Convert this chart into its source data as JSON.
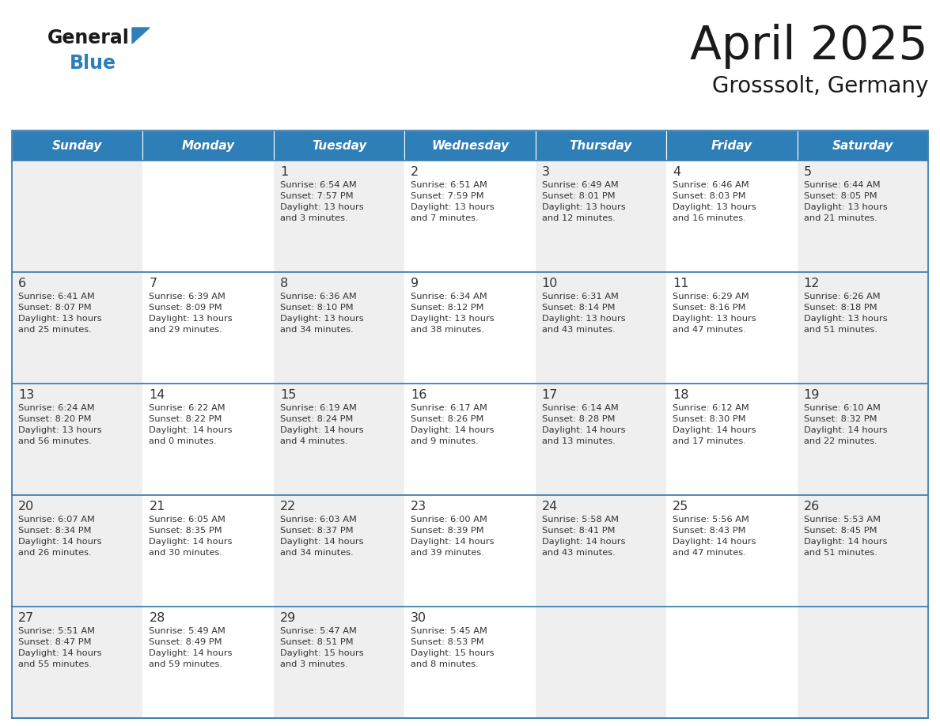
{
  "title": "April 2025",
  "subtitle": "Grosssolt, Germany",
  "header_color": "#2E7EB8",
  "header_text_color": "#FFFFFF",
  "cell_bg_even": "#EFEFEF",
  "cell_bg_odd": "#FFFFFF",
  "text_color": "#333333",
  "line_color": "#4080B0",
  "days_of_week": [
    "Sunday",
    "Monday",
    "Tuesday",
    "Wednesday",
    "Thursday",
    "Friday",
    "Saturday"
  ],
  "weeks": [
    [
      {
        "day": "",
        "info": ""
      },
      {
        "day": "",
        "info": ""
      },
      {
        "day": "1",
        "info": "Sunrise: 6:54 AM\nSunset: 7:57 PM\nDaylight: 13 hours\nand 3 minutes."
      },
      {
        "day": "2",
        "info": "Sunrise: 6:51 AM\nSunset: 7:59 PM\nDaylight: 13 hours\nand 7 minutes."
      },
      {
        "day": "3",
        "info": "Sunrise: 6:49 AM\nSunset: 8:01 PM\nDaylight: 13 hours\nand 12 minutes."
      },
      {
        "day": "4",
        "info": "Sunrise: 6:46 AM\nSunset: 8:03 PM\nDaylight: 13 hours\nand 16 minutes."
      },
      {
        "day": "5",
        "info": "Sunrise: 6:44 AM\nSunset: 8:05 PM\nDaylight: 13 hours\nand 21 minutes."
      }
    ],
    [
      {
        "day": "6",
        "info": "Sunrise: 6:41 AM\nSunset: 8:07 PM\nDaylight: 13 hours\nand 25 minutes."
      },
      {
        "day": "7",
        "info": "Sunrise: 6:39 AM\nSunset: 8:09 PM\nDaylight: 13 hours\nand 29 minutes."
      },
      {
        "day": "8",
        "info": "Sunrise: 6:36 AM\nSunset: 8:10 PM\nDaylight: 13 hours\nand 34 minutes."
      },
      {
        "day": "9",
        "info": "Sunrise: 6:34 AM\nSunset: 8:12 PM\nDaylight: 13 hours\nand 38 minutes."
      },
      {
        "day": "10",
        "info": "Sunrise: 6:31 AM\nSunset: 8:14 PM\nDaylight: 13 hours\nand 43 minutes."
      },
      {
        "day": "11",
        "info": "Sunrise: 6:29 AM\nSunset: 8:16 PM\nDaylight: 13 hours\nand 47 minutes."
      },
      {
        "day": "12",
        "info": "Sunrise: 6:26 AM\nSunset: 8:18 PM\nDaylight: 13 hours\nand 51 minutes."
      }
    ],
    [
      {
        "day": "13",
        "info": "Sunrise: 6:24 AM\nSunset: 8:20 PM\nDaylight: 13 hours\nand 56 minutes."
      },
      {
        "day": "14",
        "info": "Sunrise: 6:22 AM\nSunset: 8:22 PM\nDaylight: 14 hours\nand 0 minutes."
      },
      {
        "day": "15",
        "info": "Sunrise: 6:19 AM\nSunset: 8:24 PM\nDaylight: 14 hours\nand 4 minutes."
      },
      {
        "day": "16",
        "info": "Sunrise: 6:17 AM\nSunset: 8:26 PM\nDaylight: 14 hours\nand 9 minutes."
      },
      {
        "day": "17",
        "info": "Sunrise: 6:14 AM\nSunset: 8:28 PM\nDaylight: 14 hours\nand 13 minutes."
      },
      {
        "day": "18",
        "info": "Sunrise: 6:12 AM\nSunset: 8:30 PM\nDaylight: 14 hours\nand 17 minutes."
      },
      {
        "day": "19",
        "info": "Sunrise: 6:10 AM\nSunset: 8:32 PM\nDaylight: 14 hours\nand 22 minutes."
      }
    ],
    [
      {
        "day": "20",
        "info": "Sunrise: 6:07 AM\nSunset: 8:34 PM\nDaylight: 14 hours\nand 26 minutes."
      },
      {
        "day": "21",
        "info": "Sunrise: 6:05 AM\nSunset: 8:35 PM\nDaylight: 14 hours\nand 30 minutes."
      },
      {
        "day": "22",
        "info": "Sunrise: 6:03 AM\nSunset: 8:37 PM\nDaylight: 14 hours\nand 34 minutes."
      },
      {
        "day": "23",
        "info": "Sunrise: 6:00 AM\nSunset: 8:39 PM\nDaylight: 14 hours\nand 39 minutes."
      },
      {
        "day": "24",
        "info": "Sunrise: 5:58 AM\nSunset: 8:41 PM\nDaylight: 14 hours\nand 43 minutes."
      },
      {
        "day": "25",
        "info": "Sunrise: 5:56 AM\nSunset: 8:43 PM\nDaylight: 14 hours\nand 47 minutes."
      },
      {
        "day": "26",
        "info": "Sunrise: 5:53 AM\nSunset: 8:45 PM\nDaylight: 14 hours\nand 51 minutes."
      }
    ],
    [
      {
        "day": "27",
        "info": "Sunrise: 5:51 AM\nSunset: 8:47 PM\nDaylight: 14 hours\nand 55 minutes."
      },
      {
        "day": "28",
        "info": "Sunrise: 5:49 AM\nSunset: 8:49 PM\nDaylight: 14 hours\nand 59 minutes."
      },
      {
        "day": "29",
        "info": "Sunrise: 5:47 AM\nSunset: 8:51 PM\nDaylight: 15 hours\nand 3 minutes."
      },
      {
        "day": "30",
        "info": "Sunrise: 5:45 AM\nSunset: 8:53 PM\nDaylight: 15 hours\nand 8 minutes."
      },
      {
        "day": "",
        "info": ""
      },
      {
        "day": "",
        "info": ""
      },
      {
        "day": "",
        "info": ""
      }
    ]
  ]
}
